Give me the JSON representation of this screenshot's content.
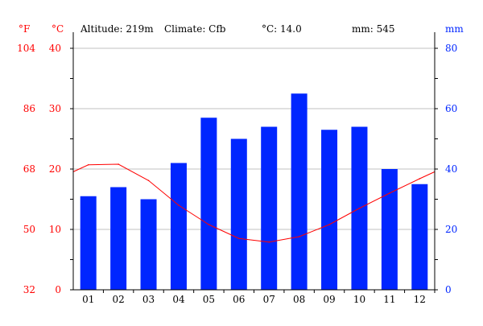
{
  "header": {
    "altitude": "Altitude: 219m",
    "climate": "Climate: Cfb",
    "mean_temp": "°C: 14.0",
    "total_precip": "mm: 545"
  },
  "chart_data": {
    "type": "bar+line",
    "categories": [
      "01",
      "02",
      "03",
      "04",
      "05",
      "06",
      "07",
      "08",
      "09",
      "10",
      "11",
      "12"
    ],
    "series": [
      {
        "name": "Precipitation (mm)",
        "type": "bar",
        "axis": "right",
        "color": "#0026ff",
        "values": [
          31,
          34,
          30,
          42,
          57,
          50,
          54,
          65,
          53,
          54,
          40,
          35
        ]
      },
      {
        "name": "Temperature (°C)",
        "type": "line",
        "axis": "left",
        "color": "#ff0000",
        "values": [
          20.7,
          20.8,
          18.1,
          14.0,
          10.8,
          8.5,
          7.9,
          8.8,
          10.8,
          13.5,
          16.0,
          18.4
        ]
      }
    ],
    "left_axis": {
      "label": "°C",
      "ylim": [
        0,
        40
      ],
      "ticks": [
        0,
        10,
        20,
        30,
        40
      ]
    },
    "far_left_axis": {
      "label": "°F",
      "ticks": [
        32,
        50,
        68,
        86,
        104
      ]
    },
    "right_axis": {
      "label": "mm",
      "ylim": [
        0,
        80
      ],
      "ticks": [
        0,
        20,
        40,
        60,
        80
      ]
    },
    "grid": true
  }
}
